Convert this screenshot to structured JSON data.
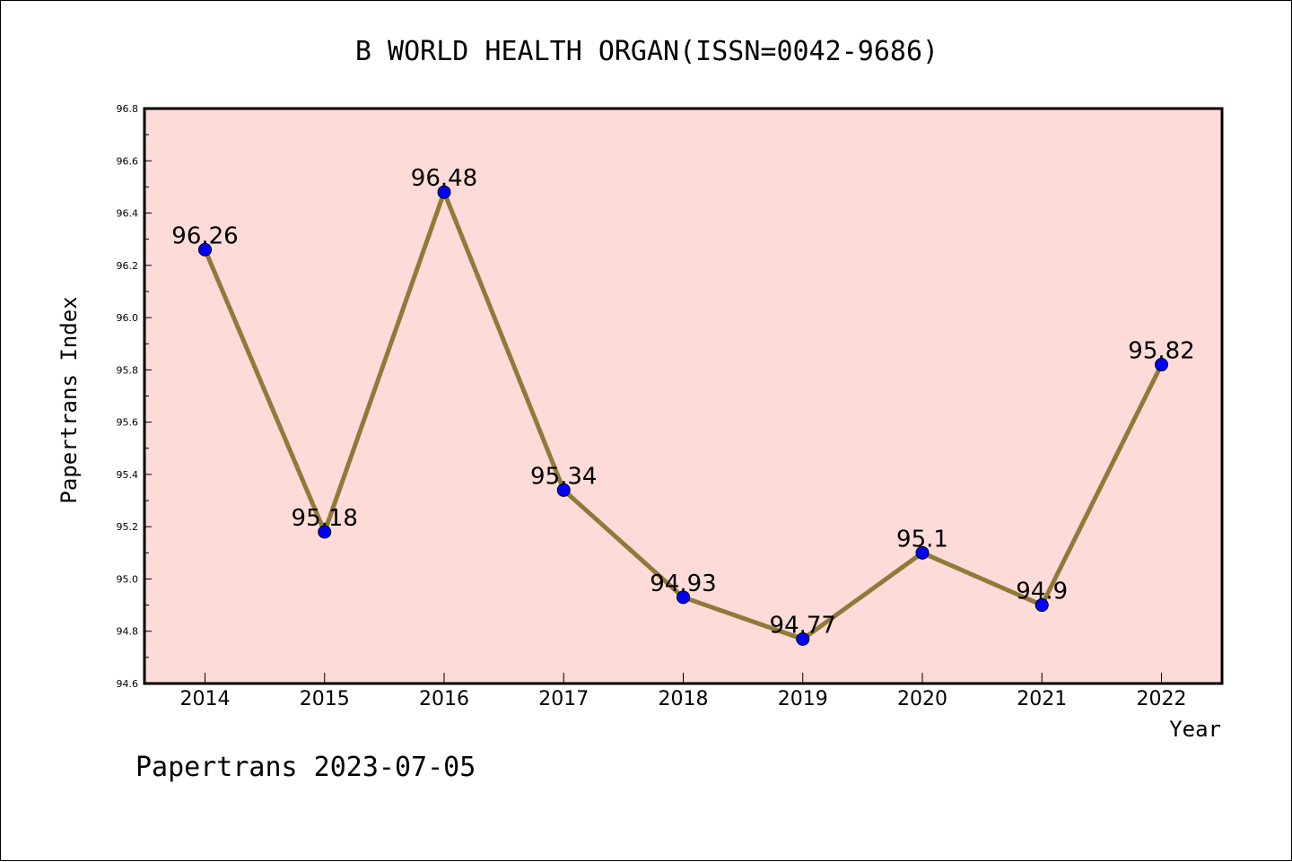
{
  "chart_data": {
    "type": "line",
    "title": "B WORLD HEALTH ORGAN(ISSN=0042-9686)",
    "xlabel": "Year",
    "ylabel": "Papertrans Index",
    "footer": "Papertrans 2023-07-05",
    "categories": [
      "2014",
      "2015",
      "2016",
      "2017",
      "2018",
      "2019",
      "2020",
      "2021",
      "2022"
    ],
    "values": [
      96.26,
      95.18,
      96.48,
      95.34,
      94.93,
      94.77,
      95.1,
      94.9,
      95.82
    ],
    "data_labels": [
      "96.26",
      "95.18",
      "96.48",
      "95.34",
      "94.93",
      "94.77",
      "95.1",
      "94.9",
      "95.82"
    ],
    "ylim": [
      94.6,
      96.8
    ],
    "y_ticks": [
      "94.6",
      "94.8",
      "95.0",
      "95.2",
      "95.4",
      "95.6",
      "95.8",
      "96.0",
      "96.2",
      "96.4",
      "96.6",
      "96.8"
    ],
    "grid": false,
    "colors": {
      "plot_background": "#fddbd8",
      "line": "#8f7a3a",
      "marker": "#0000ff",
      "axes": "#000000"
    }
  }
}
